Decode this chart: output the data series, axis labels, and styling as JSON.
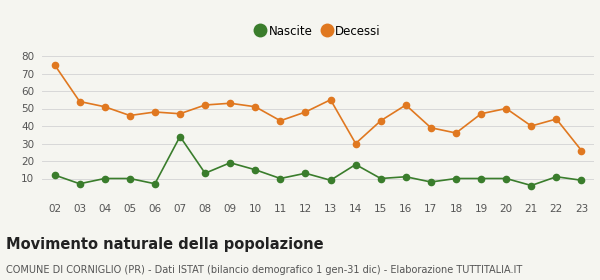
{
  "years": [
    "02",
    "03",
    "04",
    "05",
    "06",
    "07",
    "08",
    "09",
    "10",
    "11",
    "12",
    "13",
    "14",
    "15",
    "16",
    "17",
    "18",
    "19",
    "20",
    "21",
    "22",
    "23"
  ],
  "nascite": [
    12,
    7,
    10,
    10,
    7,
    34,
    13,
    19,
    15,
    10,
    13,
    9,
    18,
    10,
    11,
    8,
    10,
    10,
    10,
    6,
    11,
    9
  ],
  "decessi": [
    75,
    54,
    51,
    46,
    48,
    47,
    52,
    53,
    51,
    43,
    48,
    55,
    30,
    43,
    52,
    39,
    36,
    47,
    50,
    40,
    44,
    26
  ],
  "nascite_color": "#3a7d2c",
  "decessi_color": "#e07820",
  "background_color": "#f5f5f0",
  "grid_color": "#d8d8d8",
  "ylim": [
    0,
    80
  ],
  "yticks": [
    0,
    10,
    20,
    30,
    40,
    50,
    60,
    70,
    80
  ],
  "title": "Movimento naturale della popolazione",
  "subtitle": "COMUNE DI CORNIGLIO (PR) - Dati ISTAT (bilancio demografico 1 gen-31 dic) - Elaborazione TUTTITALIA.IT",
  "legend_nascite": "Nascite",
  "legend_decessi": "Decessi",
  "title_fontsize": 10.5,
  "subtitle_fontsize": 7,
  "tick_fontsize": 7.5,
  "legend_fontsize": 8.5,
  "marker_size": 4.5
}
